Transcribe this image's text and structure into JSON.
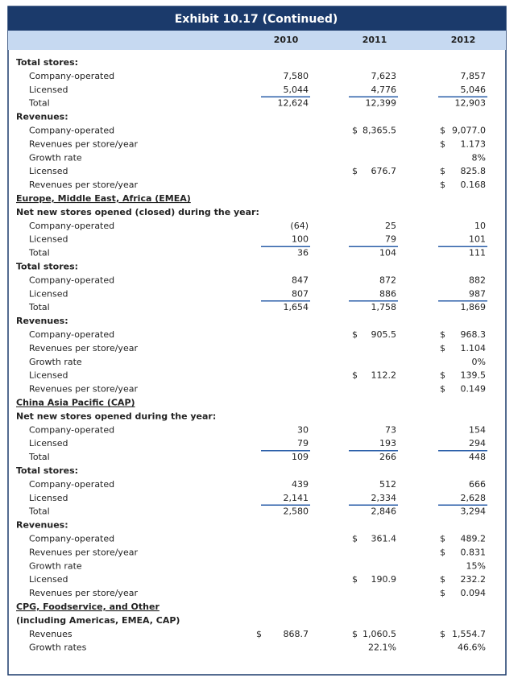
{
  "title": "Exhibit 10.17 (Continued)",
  "columns": [
    "2010",
    "2011",
    "2012"
  ],
  "rows": [
    {
      "style": "heading",
      "label": "Total stores:",
      "cells": [
        null,
        null,
        null
      ]
    },
    {
      "style": "item",
      "label": "Company-operated",
      "cells": [
        "7,580",
        "7,623",
        "7,857"
      ]
    },
    {
      "style": "item",
      "label": "Licensed",
      "cells": [
        "5,044",
        "4,776",
        "5,046"
      ],
      "underline": true
    },
    {
      "style": "item",
      "label": "Total",
      "cells": [
        "12,624",
        "12,399",
        "12,903"
      ]
    },
    {
      "style": "heading",
      "label": "Revenues:",
      "cells": [
        null,
        null,
        null
      ]
    },
    {
      "style": "item",
      "label": "Company-operated",
      "cells": [
        null,
        {
          "symbol": "$",
          "amount": "8,365.5"
        },
        {
          "symbol": "$",
          "amount": "9,077.0"
        }
      ]
    },
    {
      "style": "item",
      "label": "Revenues per store/year",
      "cells": [
        null,
        null,
        {
          "symbol": "$",
          "amount": "1.173"
        }
      ]
    },
    {
      "style": "item",
      "label": "Growth rate",
      "cells": [
        null,
        null,
        "8%"
      ]
    },
    {
      "style": "item",
      "label": "Licensed",
      "cells": [
        null,
        {
          "symbol": "$",
          "amount": "676.7"
        },
        {
          "symbol": "$",
          "amount": "825.8"
        }
      ]
    },
    {
      "style": "item",
      "label": "Revenues per store/year",
      "cells": [
        null,
        null,
        {
          "symbol": "$",
          "amount": "0.168"
        }
      ]
    },
    {
      "style": "section",
      "label": "Europe, Middle East, Africa (EMEA)",
      "cells": [
        null,
        null,
        null
      ]
    },
    {
      "style": "heading",
      "label": "Net new stores opened (closed) during the year:",
      "cells": [
        null,
        null,
        null
      ]
    },
    {
      "style": "item",
      "label": "Company-operated",
      "cells": [
        "(64)",
        "25",
        "10"
      ]
    },
    {
      "style": "item",
      "label": "Licensed",
      "cells": [
        "100",
        "79",
        "101"
      ],
      "underline": true
    },
    {
      "style": "item",
      "label": "Total",
      "cells": [
        "36",
        "104",
        "111"
      ]
    },
    {
      "style": "heading",
      "label": "Total stores:",
      "cells": [
        null,
        null,
        null
      ]
    },
    {
      "style": "item",
      "label": "Company-operated",
      "cells": [
        "847",
        "872",
        "882"
      ]
    },
    {
      "style": "item",
      "label": "Licensed",
      "cells": [
        "807",
        "886",
        "987"
      ],
      "underline": true
    },
    {
      "style": "item",
      "label": "Total",
      "cells": [
        "1,654",
        "1,758",
        "1,869"
      ]
    },
    {
      "style": "heading",
      "label": "Revenues:",
      "cells": [
        null,
        null,
        null
      ]
    },
    {
      "style": "item",
      "label": "Company-operated",
      "cells": [
        null,
        {
          "symbol": "$",
          "amount": "905.5"
        },
        {
          "symbol": "$",
          "amount": "968.3"
        }
      ]
    },
    {
      "style": "item",
      "label": "Revenues per store/year",
      "cells": [
        null,
        null,
        {
          "symbol": "$",
          "amount": "1.104"
        }
      ]
    },
    {
      "style": "item",
      "label": "Growth rate",
      "cells": [
        null,
        null,
        "0%"
      ]
    },
    {
      "style": "item",
      "label": "Licensed",
      "cells": [
        null,
        {
          "symbol": "$",
          "amount": "112.2"
        },
        {
          "symbol": "$",
          "amount": "139.5"
        }
      ]
    },
    {
      "style": "item",
      "label": "Revenues per store/year",
      "cells": [
        null,
        null,
        {
          "symbol": "$",
          "amount": "0.149"
        }
      ]
    },
    {
      "style": "section",
      "label": "China Asia Pacific (CAP)",
      "cells": [
        null,
        null,
        null
      ]
    },
    {
      "style": "heading",
      "label": "Net new stores opened during the year:",
      "cells": [
        null,
        null,
        null
      ]
    },
    {
      "style": "item",
      "label": "Company-operated",
      "cells": [
        "30",
        "73",
        "154"
      ]
    },
    {
      "style": "item",
      "label": "Licensed",
      "cells": [
        "79",
        "193",
        "294"
      ],
      "underline": true
    },
    {
      "style": "item",
      "label": "Total",
      "cells": [
        "109",
        "266",
        "448"
      ]
    },
    {
      "style": "heading",
      "label": "Total stores:",
      "cells": [
        null,
        null,
        null
      ]
    },
    {
      "style": "item",
      "label": "Company-operated",
      "cells": [
        "439",
        "512",
        "666"
      ]
    },
    {
      "style": "item",
      "label": "Licensed",
      "cells": [
        "2,141",
        "2,334",
        "2,628"
      ],
      "underline": true
    },
    {
      "style": "item",
      "label": "Total",
      "cells": [
        "2,580",
        "2,846",
        "3,294"
      ]
    },
    {
      "style": "heading",
      "label": "Revenues:",
      "cells": [
        null,
        null,
        null
      ]
    },
    {
      "style": "item",
      "label": "Company-operated",
      "cells": [
        null,
        {
          "symbol": "$",
          "amount": "361.4"
        },
        {
          "symbol": "$",
          "amount": "489.2"
        }
      ]
    },
    {
      "style": "item",
      "label": "Revenues per store/year",
      "cells": [
        null,
        null,
        {
          "symbol": "$",
          "amount": "0.831"
        }
      ]
    },
    {
      "style": "item",
      "label": "Growth rate",
      "cells": [
        null,
        null,
        "15%"
      ]
    },
    {
      "style": "item",
      "label": "Licensed",
      "cells": [
        null,
        {
          "symbol": "$",
          "amount": "190.9"
        },
        {
          "symbol": "$",
          "amount": "232.2"
        }
      ]
    },
    {
      "style": "item",
      "label": "Revenues per store/year",
      "cells": [
        null,
        null,
        {
          "symbol": "$",
          "amount": "0.094"
        }
      ]
    },
    {
      "style": "section",
      "label": "CPG, Foodservice, and Other",
      "cells": [
        null,
        null,
        null
      ]
    },
    {
      "style": "heading",
      "label": "(including Americas, EMEA, CAP)",
      "cells": [
        null,
        null,
        null
      ]
    },
    {
      "style": "item",
      "label": "Revenues",
      "cells": [
        {
          "symbol": "$",
          "amount": "868.7"
        },
        {
          "symbol": "$",
          "amount": "1,060.5"
        },
        {
          "symbol": "$",
          "amount": "1,554.7"
        }
      ]
    },
    {
      "style": "item",
      "label": "Growth rates",
      "cells": [
        null,
        "22.1%",
        "46.6%"
      ]
    }
  ]
}
